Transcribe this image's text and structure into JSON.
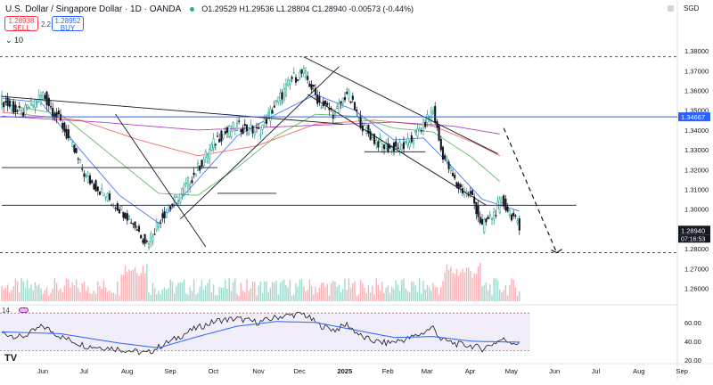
{
  "header": {
    "title": "U.S. Dollar / Singapore Dollar · 1D · OANDA",
    "ohlc": "O1.29529 H1.29536 L1.28804 C1.28940 -0.00573 (-0.44%)",
    "currency": "SGD"
  },
  "trade": {
    "sell_price": "1.28938",
    "sell_label": "SELL",
    "spread": "2.2",
    "buy_price": "1.28952",
    "buy_label": "BUY"
  },
  "interval_label": "10",
  "indicator_label": "14",
  "colors": {
    "up": "#089981",
    "down": "#f23645",
    "ma_blue": "#2962ff",
    "ma_red": "#ef5350",
    "ma_green": "#4caf50",
    "ma_purple": "#9c27b0",
    "rsi_band": "#7e57c2"
  },
  "chart_data": {
    "type": "candlestick",
    "symbol": "USD/SGD",
    "timeframe": "1D",
    "exchange": "OANDA",
    "ylim": [
      1.2535,
      1.3895
    ],
    "y_ticks": [
      "1.38000",
      "1.37000",
      "1.36000",
      "1.35000",
      "1.34000",
      "1.33000",
      "1.32000",
      "1.31000",
      "1.30000",
      "1.28000",
      "1.27000",
      "1.26000"
    ],
    "price_labels": [
      {
        "value": 1.34667,
        "text": "1.34667",
        "color": "#2962ff"
      },
      {
        "value": 1.2894,
        "text": "1.28940",
        "color": "#131722"
      }
    ],
    "countdown": "07:16:53",
    "x_ticks": [
      "Jun",
      "Jul",
      "Aug",
      "Sep",
      "Oct",
      "Nov",
      "Dec",
      "2025",
      "Feb",
      "Mar",
      "Apr",
      "May",
      "Jun",
      "Jul",
      "Aug",
      "Sep"
    ],
    "x_tick_index": [
      0,
      21,
      43,
      65,
      87,
      110,
      131,
      154,
      176,
      196,
      218,
      239,
      261,
      282,
      304,
      326
    ],
    "price_path": [
      [
        0,
        1.355
      ],
      [
        10,
        1.348
      ],
      [
        21,
        1.358
      ],
      [
        31,
        1.342
      ],
      [
        43,
        1.316
      ],
      [
        55,
        1.305
      ],
      [
        65,
        1.296
      ],
      [
        74,
        1.283
      ],
      [
        82,
        1.297
      ],
      [
        87,
        1.302
      ],
      [
        97,
        1.316
      ],
      [
        110,
        1.336
      ],
      [
        120,
        1.342
      ],
      [
        131,
        1.339
      ],
      [
        141,
        1.355
      ],
      [
        148,
        1.366
      ],
      [
        154,
        1.369
      ],
      [
        162,
        1.354
      ],
      [
        170,
        1.348
      ],
      [
        176,
        1.359
      ],
      [
        184,
        1.342
      ],
      [
        190,
        1.335
      ],
      [
        196,
        1.331
      ],
      [
        206,
        1.332
      ],
      [
        214,
        1.341
      ],
      [
        220,
        1.35
      ],
      [
        224,
        1.33
      ],
      [
        232,
        1.312
      ],
      [
        240,
        1.306
      ],
      [
        245,
        1.291
      ],
      [
        251,
        1.298
      ],
      [
        255,
        1.304
      ],
      [
        261,
        1.296
      ],
      [
        264,
        1.2894
      ]
    ],
    "moving_averages": [
      {
        "color": "#2962ff",
        "values": [
          [
            0,
            1.356
          ],
          [
            20,
            1.354
          ],
          [
            40,
            1.33
          ],
          [
            60,
            1.307
          ],
          [
            80,
            1.293
          ],
          [
            100,
            1.315
          ],
          [
            120,
            1.337
          ],
          [
            140,
            1.348
          ],
          [
            160,
            1.358
          ],
          [
            180,
            1.35
          ],
          [
            200,
            1.335
          ],
          [
            215,
            1.336
          ],
          [
            230,
            1.321
          ],
          [
            245,
            1.305
          ],
          [
            264,
            1.299
          ]
        ]
      },
      {
        "color": "#4caf50",
        "values": [
          [
            0,
            1.353
          ],
          [
            30,
            1.348
          ],
          [
            60,
            1.324
          ],
          [
            80,
            1.308
          ],
          [
            100,
            1.307
          ],
          [
            120,
            1.321
          ],
          [
            140,
            1.337
          ],
          [
            160,
            1.348
          ],
          [
            180,
            1.347
          ],
          [
            200,
            1.341
          ],
          [
            220,
            1.339
          ],
          [
            240,
            1.326
          ],
          [
            254,
            1.314
          ]
        ]
      },
      {
        "color": "#ef5350",
        "values": [
          [
            0,
            1.349
          ],
          [
            40,
            1.345
          ],
          [
            70,
            1.335
          ],
          [
            100,
            1.327
          ],
          [
            130,
            1.332
          ],
          [
            160,
            1.343
          ],
          [
            190,
            1.345
          ],
          [
            220,
            1.342
          ],
          [
            240,
            1.334
          ],
          [
            254,
            1.327
          ]
        ]
      },
      {
        "color": "#9c27b0",
        "values": [
          [
            0,
            1.347
          ],
          [
            50,
            1.344
          ],
          [
            100,
            1.34
          ],
          [
            150,
            1.342
          ],
          [
            200,
            1.344
          ],
          [
            230,
            1.342
          ],
          [
            254,
            1.338
          ]
        ]
      }
    ],
    "trend_lines": [
      [
        [
          0,
          1.357
        ],
        [
          174,
          1.343
        ]
      ],
      [
        [
          58,
          1.348
        ],
        [
          104,
          1.281
        ]
      ],
      [
        [
          91,
          1.295
        ],
        [
          172,
          1.372
        ]
      ],
      [
        [
          154,
          1.377
        ],
        [
          253,
          1.328
        ]
      ],
      [
        [
          156,
          1.358
        ],
        [
          247,
          1.302
        ]
      ],
      [
        [
          185,
          1.329
        ],
        [
          216,
          1.329
        ]
      ],
      [
        [
          0,
          1.321
        ],
        [
          110,
          1.321
        ]
      ],
      [
        [
          110,
          1.308
        ],
        [
          140,
          1.308
        ]
      ],
      [
        [
          0,
          1.302
        ],
        [
          293,
          1.302
        ]
      ]
    ],
    "dashed_levels": [
      1.377,
      1.278
    ],
    "forecast_arrow": [
      [
        256,
        1.341
      ],
      [
        283,
        1.278
      ]
    ],
    "volume": {
      "count": 265,
      "max": 100
    },
    "rsi": {
      "ylim": [
        20,
        75
      ],
      "ticks": [
        "60.00",
        "40.00",
        "20.00"
      ],
      "band_top": 70,
      "band_bottom": 30,
      "rsi_path": [
        [
          0,
          49
        ],
        [
          10,
          44
        ],
        [
          21,
          56
        ],
        [
          31,
          44
        ],
        [
          43,
          35
        ],
        [
          55,
          33
        ],
        [
          65,
          30
        ],
        [
          74,
          27
        ],
        [
          82,
          36
        ],
        [
          87,
          41
        ],
        [
          97,
          52
        ],
        [
          110,
          62
        ],
        [
          120,
          64
        ],
        [
          131,
          60
        ],
        [
          141,
          66
        ],
        [
          148,
          68
        ],
        [
          154,
          69
        ],
        [
          162,
          57
        ],
        [
          170,
          52
        ],
        [
          176,
          58
        ],
        [
          184,
          44
        ],
        [
          190,
          40
        ],
        [
          196,
          38
        ],
        [
          206,
          42
        ],
        [
          214,
          48
        ],
        [
          220,
          55
        ],
        [
          224,
          42
        ],
        [
          232,
          37
        ],
        [
          240,
          35
        ],
        [
          245,
          32
        ],
        [
          251,
          38
        ],
        [
          255,
          42
        ],
        [
          261,
          39
        ],
        [
          264,
          37
        ]
      ],
      "ma_path": [
        [
          0,
          50
        ],
        [
          30,
          48
        ],
        [
          60,
          38
        ],
        [
          80,
          33
        ],
        [
          100,
          45
        ],
        [
          120,
          56
        ],
        [
          140,
          61
        ],
        [
          160,
          60
        ],
        [
          180,
          52
        ],
        [
          200,
          44
        ],
        [
          220,
          45
        ],
        [
          240,
          40
        ],
        [
          264,
          39
        ]
      ]
    }
  }
}
